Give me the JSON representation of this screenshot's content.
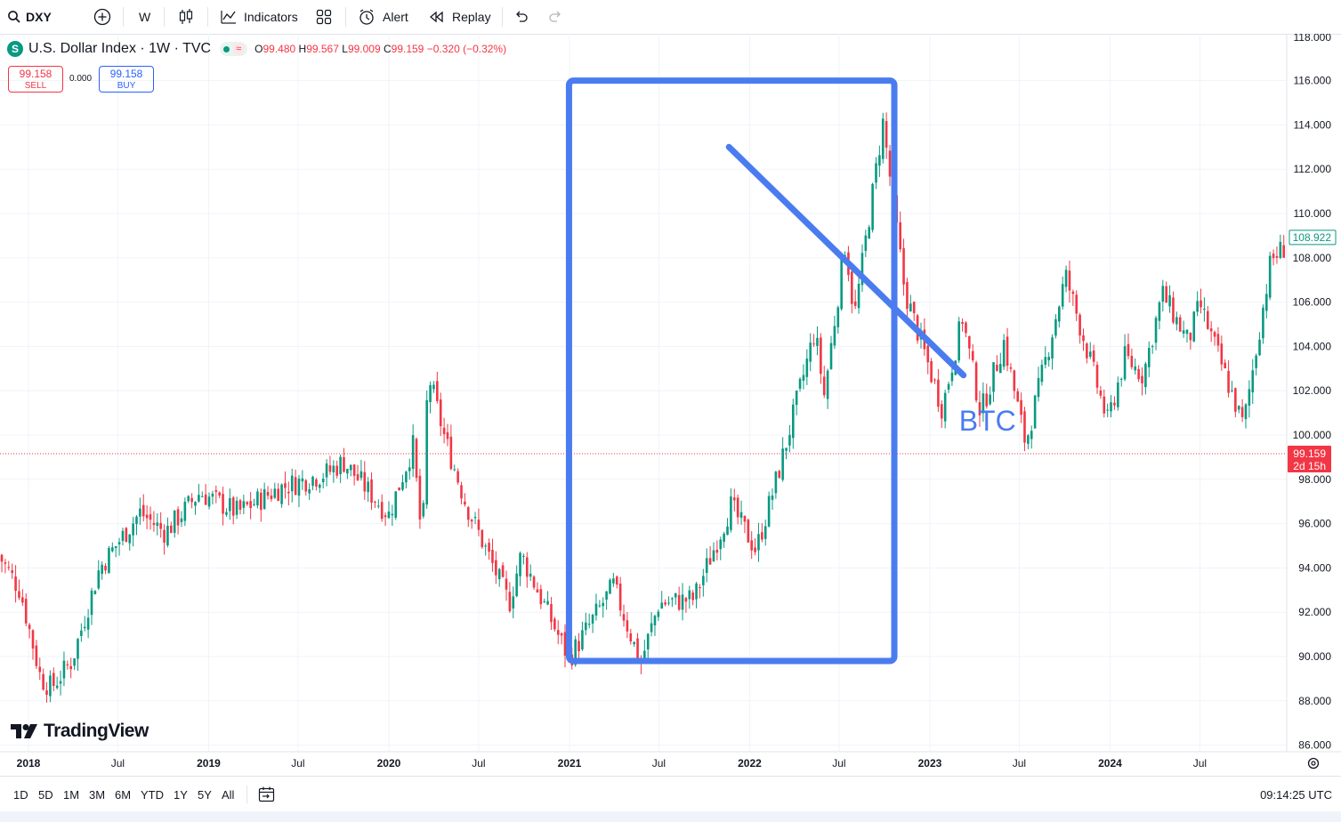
{
  "toolbar": {
    "symbol": "DXY",
    "interval": "W",
    "indicators_label": "Indicators",
    "alert_label": "Alert",
    "replay_label": "Replay",
    "icons": [
      "search-icon",
      "plus-circle-icon",
      "candles-icon",
      "indicators-icon",
      "layouts-icon",
      "alert-icon",
      "replay-icon",
      "undo-icon",
      "redo-icon"
    ]
  },
  "legend": {
    "title": "U.S. Dollar Index · 1W · TVC",
    "badge": "S",
    "market_icon": "≈",
    "o_label": "O",
    "o": "99.480",
    "h_label": "H",
    "h": "99.567",
    "l_label": "L",
    "l": "99.009",
    "c_label": "C",
    "c": "99.159",
    "change": "−0.320 (−0.32%)"
  },
  "trade": {
    "sell_price": "99.158",
    "sell_label": "SELL",
    "spread": "0.000",
    "buy_price": "99.158",
    "buy_label": "BUY"
  },
  "price_scale": {
    "top_partial": "118.000",
    "last_price": "99.159",
    "countdown": "2d 15h",
    "marker": "108.922"
  },
  "annotation": {
    "text": "BTC"
  },
  "logo_text": "TradingView",
  "range_buttons": [
    "1D",
    "5D",
    "1M",
    "3M",
    "6M",
    "YTD",
    "1Y",
    "5Y",
    "All"
  ],
  "clock": "09:14:25 UTC",
  "colors": {
    "up": "#089981",
    "down": "#f23645",
    "drawing": "#4a7cf0"
  },
  "chart_data": {
    "type": "candlestick",
    "title": "U.S. Dollar Index · 1W · TVC",
    "xlabel": "",
    "ylabel": "",
    "ylim": [
      85,
      118
    ],
    "y_ticks": [
      86,
      88,
      90,
      92,
      94,
      96,
      98,
      100,
      102,
      104,
      106,
      108,
      110,
      112,
      114,
      116
    ],
    "x_ticks": [
      "2018",
      "Jul",
      "2019",
      "Jul",
      "2020",
      "Jul",
      "2021",
      "Jul",
      "2022",
      "Jul",
      "2023",
      "Jul",
      "2024",
      "Jul"
    ],
    "x_tick_dates": [
      "2018-01-01",
      "2018-07-01",
      "2019-01-01",
      "2019-07-01",
      "2020-01-01",
      "2020-07-01",
      "2021-01-01",
      "2021-07-01",
      "2022-01-01",
      "2022-07-01",
      "2023-01-01",
      "2023-07-01",
      "2024-01-01",
      "2024-07-01"
    ],
    "date_range": [
      "2017-11-01",
      "2024-12-31"
    ],
    "close_path": [
      [
        "2017-11-01",
        94.6
      ],
      [
        "2017-12-15",
        93.0
      ],
      [
        "2018-01-26",
        89.0
      ],
      [
        "2018-02-16",
        88.6
      ],
      [
        "2018-03-30",
        89.8
      ],
      [
        "2018-05-25",
        94.0
      ],
      [
        "2018-08-15",
        96.5
      ],
      [
        "2018-10-05",
        95.6
      ],
      [
        "2018-12-14",
        97.4
      ],
      [
        "2019-03-01",
        96.5
      ],
      [
        "2019-05-24",
        97.6
      ],
      [
        "2019-08-30",
        98.3
      ],
      [
        "2019-10-01",
        98.8
      ],
      [
        "2019-11-08",
        97.8
      ],
      [
        "2020-01-01",
        96.4
      ],
      [
        "2020-02-19",
        99.5
      ],
      [
        "2020-03-09",
        95.0
      ],
      [
        "2020-03-20",
        102.8
      ],
      [
        "2020-04-24",
        99.8
      ],
      [
        "2020-06-05",
        96.9
      ],
      [
        "2020-09-01",
        92.4
      ],
      [
        "2020-09-25",
        94.6
      ],
      [
        "2020-12-31",
        89.9
      ],
      [
        "2021-03-31",
        93.2
      ],
      [
        "2021-05-25",
        89.7
      ],
      [
        "2021-07-01",
        92.4
      ],
      [
        "2021-09-10",
        92.6
      ],
      [
        "2021-11-24",
        96.8
      ],
      [
        "2022-01-14",
        94.8
      ],
      [
        "2022-03-04",
        98.6
      ],
      [
        "2022-05-13",
        104.7
      ],
      [
        "2022-06-01",
        101.8
      ],
      [
        "2022-07-14",
        108.7
      ],
      [
        "2022-08-01",
        105.3
      ],
      [
        "2022-09-28",
        114.1
      ],
      [
        "2022-11-11",
        106.5
      ],
      [
        "2023-01-26",
        101.2
      ],
      [
        "2023-03-08",
        105.3
      ],
      [
        "2023-04-14",
        101.0
      ],
      [
        "2023-05-31",
        104.2
      ],
      [
        "2023-07-14",
        99.6
      ],
      [
        "2023-10-03",
        107.2
      ],
      [
        "2023-12-27",
        100.6
      ],
      [
        "2024-01-31",
        103.5
      ],
      [
        "2024-03-08",
        102.7
      ],
      [
        "2024-04-16",
        106.4
      ],
      [
        "2024-06-07",
        104.2
      ],
      [
        "2024-07-01",
        105.9
      ],
      [
        "2024-09-27",
        100.4
      ],
      [
        "2024-11-22",
        107.9
      ],
      [
        "2024-12-20",
        108.5
      ]
    ],
    "last_close": 99.159,
    "overlays": [
      {
        "type": "rectangle",
        "from": [
          "2020-12-31",
          116.0
        ],
        "to": [
          "2022-10-21",
          89.8
        ]
      },
      {
        "type": "trendline",
        "from": [
          "2021-11-20",
          113.0
        ],
        "to": [
          "2023-03-10",
          102.7
        ]
      },
      {
        "type": "text",
        "text": "BTC",
        "at": [
          "2023-03-01",
          100.2
        ]
      }
    ]
  }
}
